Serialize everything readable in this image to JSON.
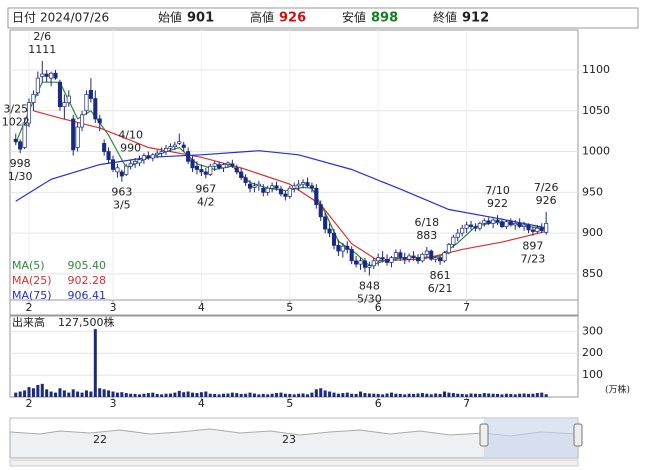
{
  "header": {
    "date_label": "日付",
    "date": "2024/07/26",
    "open_label": "始値",
    "open": 901,
    "high_label": "高値",
    "high": 926,
    "low_label": "安値",
    "low": 898,
    "close_label": "終値",
    "close": 912
  },
  "chart_data": [
    {
      "type": "candlestick",
      "categories": [
        null,
        null,
        null,
        "2",
        null,
        null,
        null,
        null,
        null,
        null,
        null,
        null,
        null,
        null,
        null,
        null,
        null,
        null,
        null,
        null,
        null,
        null,
        "3",
        null,
        null,
        null,
        null,
        null,
        null,
        null,
        null,
        null,
        null,
        null,
        null,
        null,
        null,
        null,
        null,
        null,
        null,
        null,
        "4",
        null,
        null,
        null,
        null,
        null,
        null,
        null,
        null,
        null,
        null,
        null,
        null,
        null,
        null,
        null,
        null,
        null,
        null,
        null,
        "5",
        null,
        null,
        null,
        null,
        null,
        null,
        null,
        null,
        null,
        null,
        null,
        null,
        null,
        null,
        null,
        null,
        null,
        null,
        null,
        "6",
        null,
        null,
        null,
        null,
        null,
        null,
        null,
        null,
        null,
        null,
        null,
        null,
        null,
        null,
        null,
        null,
        null,
        null,
        null,
        "7",
        null,
        null,
        null,
        null,
        null,
        null,
        null,
        null,
        null,
        null,
        null,
        null,
        null,
        null,
        null,
        null,
        null,
        null
      ],
      "xlim": [
        -1.3,
        127.2
      ],
      "ylim": [
        818,
        1149
      ],
      "yticks": [
        850,
        900,
        950,
        1000,
        1050,
        1100
      ],
      "grid": true,
      "up_color": "#ffffff",
      "down_color": "#1a2a80",
      "ohlc": [
        [
          1015,
          1022,
          1008,
          1012
        ],
        [
          1012,
          1015,
          998,
          1003
        ],
        [
          1005,
          1040,
          1003,
          1035
        ],
        [
          1035,
          1065,
          1030,
          1060
        ],
        [
          1060,
          1075,
          1050,
          1070
        ],
        [
          1072,
          1098,
          1068,
          1090
        ],
        [
          1092,
          1111,
          1085,
          1095
        ],
        [
          1095,
          1100,
          1085,
          1092
        ],
        [
          1090,
          1098,
          1080,
          1096
        ],
        [
          1096,
          1100,
          1088,
          1090
        ],
        [
          1085,
          1088,
          1050,
          1055
        ],
        [
          1055,
          1070,
          1040,
          1060
        ],
        [
          1060,
          1075,
          1055,
          1068
        ],
        [
          1040,
          1045,
          995,
          1002
        ],
        [
          1005,
          1035,
          1000,
          1030
        ],
        [
          1030,
          1050,
          1025,
          1045
        ],
        [
          1050,
          1075,
          1045,
          1070
        ],
        [
          1075,
          1090,
          1060,
          1065
        ],
        [
          1065,
          1075,
          1035,
          1040
        ],
        [
          1040,
          1045,
          1025,
          1035
        ],
        [
          1010,
          1015,
          995,
          1000
        ],
        [
          1000,
          1005,
          985,
          990
        ],
        [
          990,
          995,
          975,
          978
        ],
        [
          975,
          985,
          968,
          980
        ],
        [
          975,
          978,
          963,
          970
        ],
        [
          972,
          985,
          970,
          982
        ],
        [
          982,
          990,
          978,
          985
        ],
        [
          985,
          992,
          980,
          988
        ],
        [
          986,
          995,
          982,
          990
        ],
        [
          990,
          998,
          985,
          995
        ],
        [
          995,
          1000,
          990,
          992
        ],
        [
          992,
          998,
          988,
          996
        ],
        [
          996,
          1002,
          992,
          998
        ],
        [
          998,
          1005,
          994,
          1000
        ],
        [
          1000,
          1008,
          996,
          1004
        ],
        [
          1004,
          1010,
          1000,
          1006
        ],
        [
          1006,
          1012,
          1002,
          1008
        ],
        [
          1010,
          1022,
          1008,
          1012
        ],
        [
          1008,
          1012,
          1000,
          1005
        ],
        [
          1000,
          1005,
          985,
          988
        ],
        [
          990,
          995,
          975,
          980
        ],
        [
          982,
          988,
          972,
          978
        ],
        [
          978,
          984,
          970,
          975
        ],
        [
          975,
          980,
          967,
          972
        ],
        [
          972,
          985,
          970,
          982
        ],
        [
          982,
          988,
          976,
          985
        ],
        [
          984,
          988,
          978,
          980
        ],
        [
          980,
          986,
          975,
          984
        ],
        [
          984,
          988,
          980,
          986
        ],
        [
          985,
          990,
          980,
          982
        ],
        [
          980,
          984,
          972,
          975
        ],
        [
          975,
          980,
          965,
          968
        ],
        [
          968,
          972,
          958,
          962
        ],
        [
          960,
          965,
          950,
          955
        ],
        [
          956,
          962,
          950,
          958
        ],
        [
          958,
          964,
          952,
          960
        ],
        [
          955,
          960,
          945,
          950
        ],
        [
          950,
          958,
          946,
          955
        ],
        [
          955,
          962,
          950,
          958
        ],
        [
          958,
          963,
          952,
          955
        ],
        [
          954,
          958,
          945,
          948
        ],
        [
          948,
          952,
          940,
          945
        ],
        [
          945,
          958,
          942,
          955
        ],
        [
          955,
          962,
          950,
          958
        ],
        [
          958,
          965,
          952,
          960
        ],
        [
          960,
          966,
          955,
          962
        ],
        [
          962,
          968,
          956,
          958
        ],
        [
          958,
          962,
          950,
          955
        ],
        [
          955,
          960,
          930,
          935
        ],
        [
          935,
          940,
          915,
          920
        ],
        [
          920,
          925,
          900,
          905
        ],
        [
          905,
          912,
          895,
          900
        ],
        [
          900,
          905,
          880,
          885
        ],
        [
          885,
          892,
          872,
          878
        ],
        [
          878,
          888,
          870,
          884
        ],
        [
          884,
          890,
          875,
          880
        ],
        [
          880,
          884,
          862,
          866
        ],
        [
          866,
          872,
          858,
          862
        ],
        [
          862,
          870,
          855,
          866
        ],
        [
          866,
          870,
          852,
          858
        ],
        [
          858,
          865,
          848,
          860
        ],
        [
          860,
          870,
          856,
          866
        ],
        [
          866,
          875,
          860,
          870
        ],
        [
          870,
          878,
          864,
          868
        ],
        [
          868,
          874,
          860,
          864
        ],
        [
          864,
          872,
          858,
          870
        ],
        [
          870,
          880,
          866,
          876
        ],
        [
          876,
          880,
          866,
          870
        ],
        [
          870,
          876,
          862,
          868
        ],
        [
          868,
          875,
          864,
          872
        ],
        [
          872,
          878,
          866,
          870
        ],
        [
          870,
          874,
          862,
          866
        ],
        [
          866,
          876,
          864,
          874
        ],
        [
          874,
          883,
          870,
          878
        ],
        [
          878,
          880,
          866,
          868
        ],
        [
          868,
          872,
          864,
          870
        ],
        [
          870,
          872,
          861,
          866
        ],
        [
          866,
          878,
          864,
          876
        ],
        [
          876,
          888,
          874,
          886
        ],
        [
          886,
          898,
          882,
          895
        ],
        [
          895,
          905,
          890,
          900
        ],
        [
          900,
          910,
          896,
          906
        ],
        [
          906,
          914,
          900,
          910
        ],
        [
          910,
          915,
          904,
          908
        ],
        [
          908,
          912,
          902,
          906
        ],
        [
          906,
          914,
          903,
          912
        ],
        [
          912,
          918,
          908,
          915
        ],
        [
          915,
          919,
          910,
          912
        ],
        [
          912,
          918,
          906,
          916
        ],
        [
          916,
          922,
          910,
          914
        ],
        [
          914,
          918,
          906,
          908
        ],
        [
          908,
          916,
          905,
          914
        ],
        [
          914,
          918,
          908,
          910
        ],
        [
          910,
          916,
          904,
          912
        ],
        [
          912,
          918,
          906,
          908
        ],
        [
          908,
          914,
          903,
          910
        ],
        [
          910,
          912,
          900,
          904
        ],
        [
          904,
          908,
          897,
          902
        ],
        [
          902,
          910,
          899,
          906
        ],
        [
          906,
          912,
          900,
          903
        ],
        [
          901,
          926,
          898,
          912
        ]
      ],
      "series": [
        {
          "name": "MA(5)",
          "color": "#2e8b3a",
          "last": {
            "value": 905.4,
            "label": "905.40"
          },
          "x": [
            0,
            3,
            6,
            10,
            14,
            17,
            21,
            25,
            29,
            33,
            37,
            41,
            45,
            49,
            53,
            57,
            61,
            65,
            67,
            70,
            73,
            77,
            80,
            84,
            88,
            92,
            96,
            100,
            104,
            108,
            112,
            116,
            120
          ],
          "values": [
            1010,
            1050,
            1085,
            1085,
            1040,
            1050,
            1020,
            980,
            990,
            998,
            1005,
            985,
            978,
            982,
            962,
            955,
            952,
            956,
            955,
            925,
            890,
            875,
            860,
            867,
            870,
            870,
            872,
            888,
            908,
            913,
            912,
            908,
            905.4
          ]
        },
        {
          "name": "MA(25)",
          "color": "#e03030",
          "last": {
            "value": 902.28,
            "label": "902.28"
          },
          "x": [
            4,
            10,
            19,
            30,
            42,
            51,
            62,
            69,
            76,
            82,
            92,
            101,
            110,
            120
          ],
          "values": [
            1050,
            1041,
            1029,
            1005,
            993,
            980,
            960,
            935,
            887,
            866,
            868,
            880,
            889,
            902.28
          ]
        },
        {
          "name": "MA(75)",
          "color": "#2030e0",
          "last": {
            "value": 906.41,
            "label": "906.41"
          },
          "x": [
            0,
            8,
            19,
            30,
            42,
            55,
            64,
            76,
            87,
            98,
            110,
            120
          ],
          "values": [
            939,
            966,
            984,
            993,
            996,
            1001,
            996,
            978,
            954,
            929,
            917,
            906.41
          ]
        }
      ],
      "annotations": [
        {
          "text": "2/6",
          "value": 1111,
          "kind": "high"
        },
        {
          "text": "1/30",
          "value": 998,
          "kind": "low"
        },
        {
          "text": "3/5",
          "value": 963,
          "kind": "low"
        },
        {
          "text": "3/25",
          "value": 1022,
          "kind": "high"
        },
        {
          "text": "4/2",
          "value": 967,
          "kind": "low"
        },
        {
          "text": "4/10",
          "value": 990,
          "kind": "high"
        },
        {
          "text": "5/30",
          "value": 848,
          "kind": "low"
        },
        {
          "text": "6/18",
          "value": 883,
          "kind": "high"
        },
        {
          "text": "6/21",
          "value": 861,
          "kind": "low"
        },
        {
          "text": "7/10",
          "value": 922,
          "kind": "high"
        },
        {
          "text": "7/23",
          "value": 897,
          "kind": "low"
        },
        {
          "text": "7/26",
          "value": 926,
          "kind": "high"
        }
      ]
    },
    {
      "type": "bar",
      "title": "出来高",
      "title_value": "127,500株",
      "unit": "(万株)",
      "color": "#1a2a80",
      "categories": [
        null,
        null,
        null,
        "2",
        null,
        null,
        null,
        null,
        null,
        null,
        null,
        null,
        null,
        null,
        null,
        null,
        null,
        null,
        null,
        null,
        null,
        null,
        "3",
        null,
        null,
        null,
        null,
        null,
        null,
        null,
        null,
        null,
        null,
        null,
        null,
        null,
        null,
        null,
        null,
        null,
        null,
        null,
        "4",
        null,
        null,
        null,
        null,
        null,
        null,
        null,
        null,
        null,
        null,
        null,
        null,
        null,
        null,
        null,
        null,
        null,
        null,
        null,
        "5",
        null,
        null,
        null,
        null,
        null,
        null,
        null,
        null,
        null,
        null,
        null,
        null,
        null,
        null,
        null,
        null,
        null,
        null,
        null,
        "6",
        null,
        null,
        null,
        null,
        null,
        null,
        null,
        null,
        null,
        null,
        null,
        null,
        null,
        null,
        null,
        null,
        null,
        null,
        null,
        "7",
        null,
        null,
        null,
        null,
        null,
        null,
        null,
        null,
        null,
        null,
        null,
        null,
        null,
        null,
        null,
        null,
        null,
        null
      ],
      "xlim": [
        -1.3,
        127.2
      ],
      "ylim": [
        0,
        370
      ],
      "yticks": [
        100,
        200,
        300
      ],
      "values": [
        20,
        25,
        30,
        45,
        40,
        55,
        60,
        35,
        25,
        20,
        40,
        30,
        20,
        35,
        25,
        20,
        30,
        25,
        310,
        40,
        35,
        30,
        25,
        20,
        22,
        18,
        15,
        14,
        12,
        15,
        18,
        20,
        14,
        12,
        15,
        16,
        20,
        28,
        22,
        25,
        20,
        18,
        22,
        25,
        15,
        14,
        12,
        15,
        16,
        20,
        18,
        14,
        15,
        20,
        16,
        12,
        14,
        12,
        15,
        18,
        20,
        15,
        14,
        12,
        15,
        16,
        12,
        20,
        35,
        40,
        30,
        25,
        20,
        15,
        18,
        20,
        15,
        14,
        25,
        18,
        16,
        15,
        14,
        12,
        16,
        20,
        15,
        14,
        12,
        15,
        14,
        16,
        18,
        15,
        12,
        16,
        14,
        25,
        20,
        18,
        15,
        14,
        12,
        16,
        15,
        14,
        18,
        16,
        15,
        14,
        12,
        15,
        14,
        12,
        15,
        16,
        14,
        15,
        18,
        20,
        12.75
      ]
    }
  ],
  "navigator": {
    "labels": [
      "22",
      "23"
    ]
  }
}
